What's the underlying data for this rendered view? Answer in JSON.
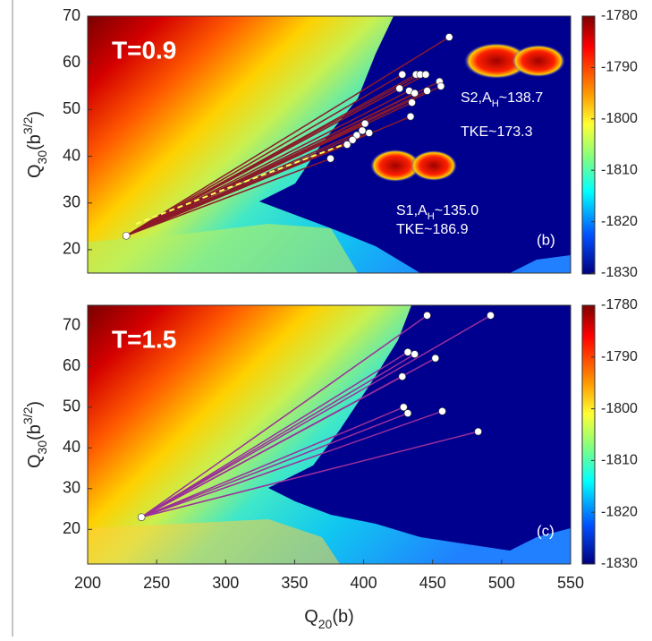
{
  "chart_data": [
    {
      "type": "scatter",
      "label": "T=0.9",
      "panel_label": "(b)",
      "xlim": [
        200,
        550
      ],
      "ylim": [
        15,
        70
      ],
      "yticks": [
        20,
        30,
        40,
        50,
        60,
        70
      ],
      "ylabel": [
        "Q",
        "30",
        "(b",
        "3/2",
        ")"
      ],
      "colorbar": {
        "lim": [
          -1830,
          -1780
        ],
        "ticks": [
          -1830,
          -1820,
          -1810,
          -1800,
          -1790,
          -1780
        ]
      },
      "annotations": [
        {
          "parts": [
            "S2,A",
            "H",
            "~138.7"
          ]
        },
        {
          "parts": [
            "TKE~173.3"
          ]
        },
        {
          "parts": [
            "S1,A",
            "H",
            "~135.0"
          ]
        },
        {
          "parts": [
            "TKE~186.9"
          ]
        }
      ],
      "line_color": "#8b1a2a",
      "mean_path": {
        "color": "#ffff55",
        "x": [
          235,
          300,
          390
        ],
        "y": [
          25.5,
          33,
          43
        ]
      },
      "series": [
        {
          "color": "#ffffff",
          "x": [
            228,
            462,
            428,
            438,
            441,
            445,
            455,
            456,
            426,
            433,
            437,
            446,
            435,
            434,
            401,
            399,
            404,
            395,
            388,
            392,
            376
          ],
          "y": [
            23,
            65.5,
            57.5,
            57.5,
            57.5,
            57.5,
            56,
            55,
            54.5,
            54,
            53.5,
            54,
            51.5,
            48.5,
            47,
            45.5,
            45,
            44.5,
            42.5,
            43.5,
            39.5
          ]
        }
      ]
    },
    {
      "type": "scatter",
      "label": "T=1.5",
      "panel_label": "(c)",
      "xlim": [
        200,
        550
      ],
      "ylim": [
        11.5,
        75
      ],
      "yticks": [
        20,
        30,
        40,
        50,
        60,
        70
      ],
      "xticks": [
        200,
        250,
        300,
        350,
        400,
        450,
        500,
        550
      ],
      "ylabel": [
        "Q",
        "30",
        "(b",
        "3/2",
        ")"
      ],
      "xlabel": [
        "Q",
        "20",
        "(b",
        ")"
      ],
      "colorbar": {
        "lim": [
          -1830,
          -1780
        ],
        "ticks": [
          -1830,
          -1820,
          -1810,
          -1800,
          -1790,
          -1780
        ]
      },
      "line_color": "#9b2f9b",
      "series": [
        {
          "color": "#ffffff",
          "x": [
            239,
            446,
            492,
            432,
            437,
            452,
            428,
            429,
            432,
            457,
            483
          ],
          "y": [
            23,
            72.5,
            72.5,
            63.5,
            63,
            62,
            57.5,
            50,
            48.5,
            49,
            44
          ]
        }
      ]
    }
  ]
}
